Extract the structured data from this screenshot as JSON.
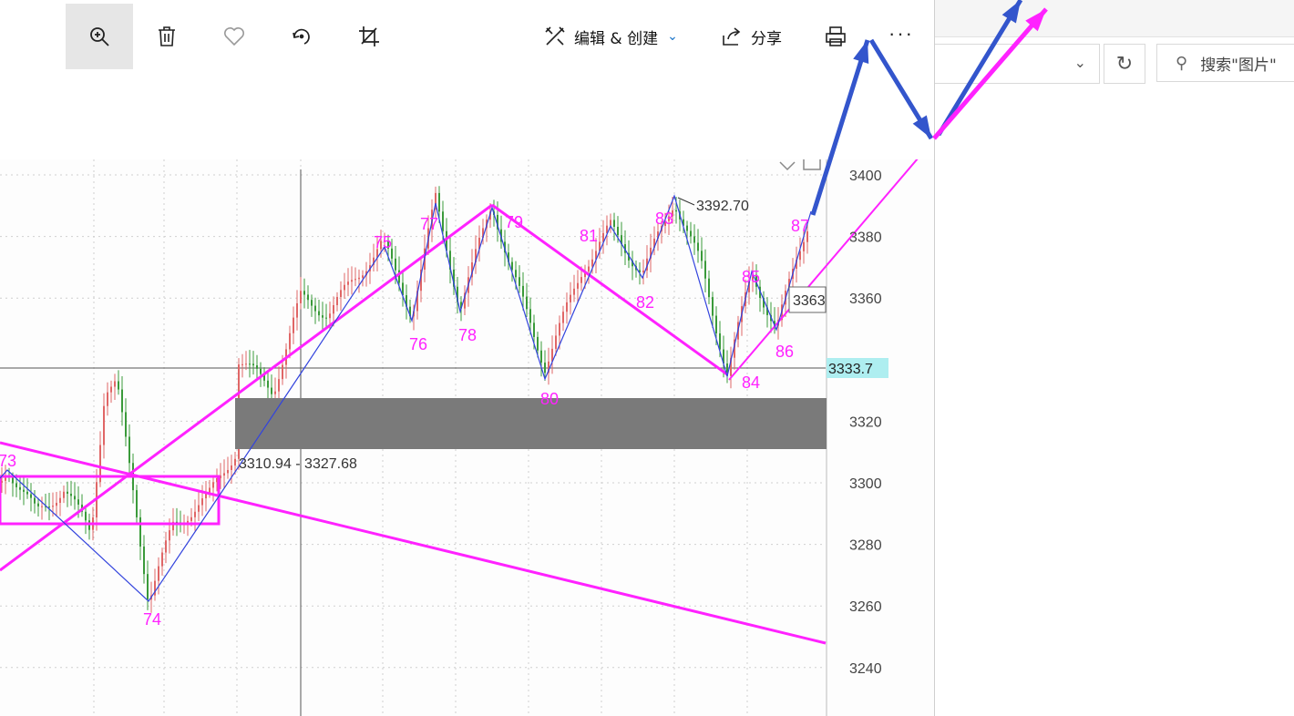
{
  "toolbar": {
    "edit_create_label": "编辑 & 创建",
    "share_label": "分享",
    "more_label": "···"
  },
  "explorer": {
    "search_placeholder": "搜索\"图片\""
  },
  "chart": {
    "y_ticks": [
      "3400",
      "3380",
      "3360",
      "3320",
      "3300",
      "3280",
      "3260",
      "3240"
    ],
    "current_price": "3333.7",
    "peak_label": "3392.70",
    "zone_label": "3310.94 - 3327.68",
    "partial_price_label": "3363",
    "wave_labels": [
      "73",
      "74",
      "75",
      "76",
      "77",
      "78",
      "79",
      "80",
      "81",
      "82",
      "83",
      "84",
      "85",
      "86",
      "87"
    ]
  },
  "colors": {
    "magenta": "#ff22ff",
    "blue_line": "#3344dd",
    "arrow_blue": "#3355cc",
    "zone_gray": "#7a7a7a",
    "up_candle": "#e06666",
    "down_candle": "#3a9a3a",
    "price_tag_bg": "#aeeef0"
  },
  "icons": [
    "zoom-in-icon",
    "delete-icon",
    "favorite-icon",
    "rotate-icon",
    "crop-icon",
    "edit-create-icon",
    "share-icon",
    "print-icon",
    "more-icon",
    "search-icon",
    "refresh-icon",
    "chevron-down-icon"
  ]
}
